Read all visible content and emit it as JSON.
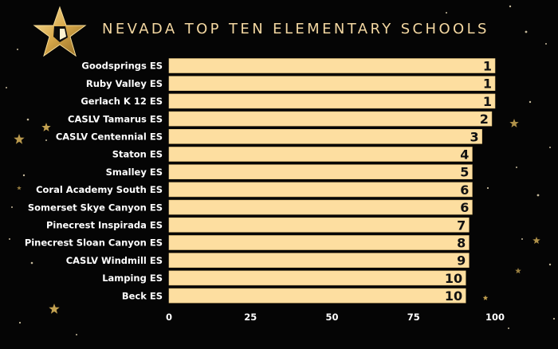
{
  "colors": {
    "background": "#050505",
    "bar_fill": "#fddea0",
    "bar_stroke": "#e8c67f",
    "title": "#f3d7a1",
    "label": "#ffffff",
    "value_label": "#111111",
    "star_gold": "#d9b45a"
  },
  "logo_icon": "gold-star-logo-icon",
  "chart_data": {
    "type": "bar",
    "orientation": "horizontal",
    "title": "NEVADA TOP TEN ELEMENTARY SCHOOLS",
    "xlabel": "",
    "ylabel": "",
    "categories": [
      "Goodsprings ES",
      "Ruby Valley ES",
      "Gerlach K 12 ES",
      "CASLV Tamarus ES",
      "CASLV Centennial ES",
      "Staton ES",
      "Smalley ES",
      "Coral Academy South ES",
      "Somerset Skye Canyon ES",
      "Pinecrest Inspirada ES",
      "Pinecrest Sloan Canyon ES",
      "CASLV Windmill ES",
      "Lamping ES",
      "Beck ES"
    ],
    "values": [
      100,
      100,
      100,
      99,
      96,
      93,
      93,
      93,
      93,
      92,
      92,
      92,
      91,
      91
    ],
    "data_labels": [
      "1",
      "1",
      "1",
      "2",
      "3",
      "4",
      "5",
      "6",
      "6",
      "7",
      "8",
      "9",
      "10",
      "10"
    ],
    "xlim": [
      0,
      100
    ],
    "xticks": [
      "0",
      "25",
      "50",
      "75",
      "100"
    ],
    "grid": false,
    "legend": "none"
  }
}
